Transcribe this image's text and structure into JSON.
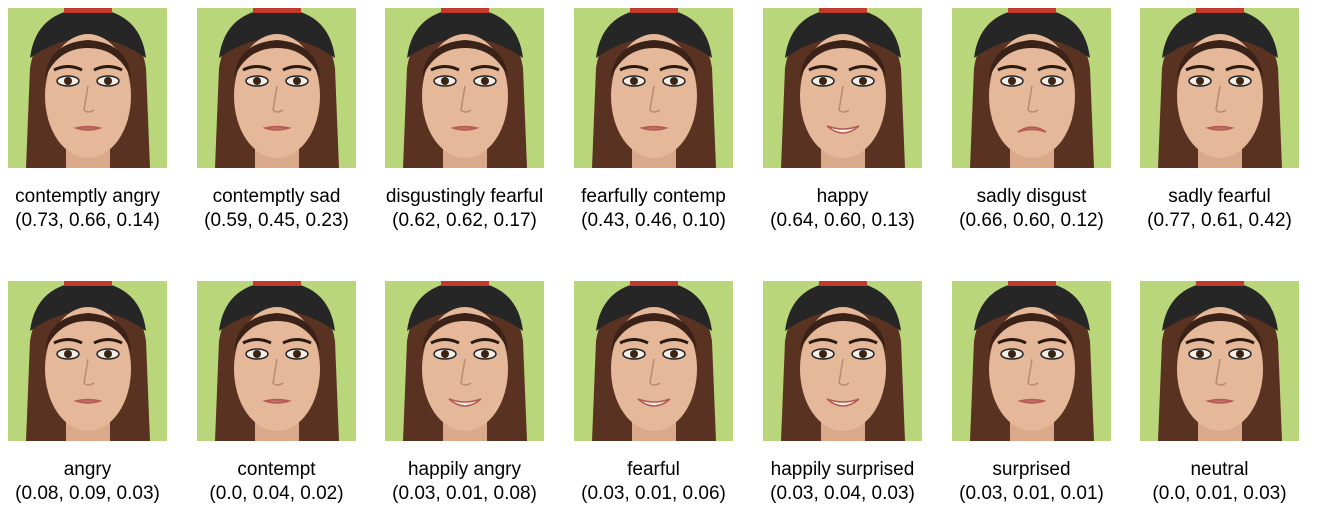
{
  "rows": [
    [
      {
        "label": "contemptly angry",
        "values": "(0.73, 0.66, 0.14)"
      },
      {
        "label": "contemptly sad",
        "values": "(0.59, 0.45, 0.23)"
      },
      {
        "label": "disgustingly fearful",
        "values": "(0.62, 0.62, 0.17)"
      },
      {
        "label": "fearfully contemp",
        "values": "(0.43, 0.46, 0.10)"
      },
      {
        "label": "happy",
        "values": "(0.64, 0.60, 0.13)"
      },
      {
        "label": "sadly disgust",
        "values": "(0.66, 0.60, 0.12)"
      },
      {
        "label": "sadly fearful",
        "values": "(0.77, 0.61, 0.42)"
      }
    ],
    [
      {
        "label": "angry",
        "values": "(0.08, 0.09, 0.03)"
      },
      {
        "label": "contempt",
        "values": "(0.0, 0.04, 0.02)"
      },
      {
        "label": "happily angry",
        "values": "(0.03, 0.01, 0.08)"
      },
      {
        "label": "fearful",
        "values": "(0.03, 0.01, 0.06)"
      },
      {
        "label": "happily surprised",
        "values": "(0.03, 0.04, 0.03)"
      },
      {
        "label": "surprised",
        "values": "(0.03, 0.01, 0.01)"
      },
      {
        "label": "neutral",
        "values": "(0.0, 0.01, 0.03)"
      }
    ]
  ]
}
